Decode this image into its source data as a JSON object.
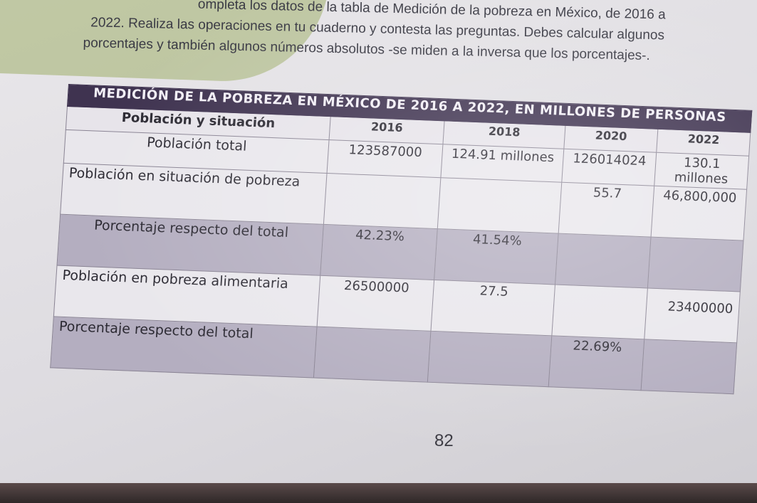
{
  "instructions": {
    "lines": [
      "ompleta los datos de la tabla de Medición de la pobreza en México, de 2016 a",
      "2022. Realiza las operaciones en tu cuaderno y contesta las preguntas. Debes calcular algunos",
      "porcentajes y también algunos números absolutos -se miden a la inversa que los porcentajes-."
    ]
  },
  "table": {
    "title": "MEDICIÓN DE LA POBREZA EN MÉXICO DE 2016 A 2022, EN MILLONES DE PERSONAS",
    "header_label": "Población y situación",
    "years": [
      "2016",
      "2018",
      "2020",
      "2022"
    ],
    "rows": [
      {
        "label": "Población total",
        "values": [
          "123587000",
          "124.91 millones",
          "126014024",
          "130.1 millones"
        ]
      },
      {
        "label": "Población en situación de pobreza",
        "values": [
          "",
          "",
          "55.7",
          "46,800,000"
        ]
      },
      {
        "label": "Porcentaje respecto del total",
        "values": [
          "42.23%",
          "41.54%",
          "",
          ""
        ]
      },
      {
        "label": "Población en pobreza alimentaria",
        "values": [
          "26500000",
          "27.5",
          "",
          "23400000"
        ]
      },
      {
        "label": "Porcentaje respecto del total",
        "values": [
          "",
          "",
          "22.69%",
          ""
        ]
      }
    ]
  },
  "page_number": "82"
}
